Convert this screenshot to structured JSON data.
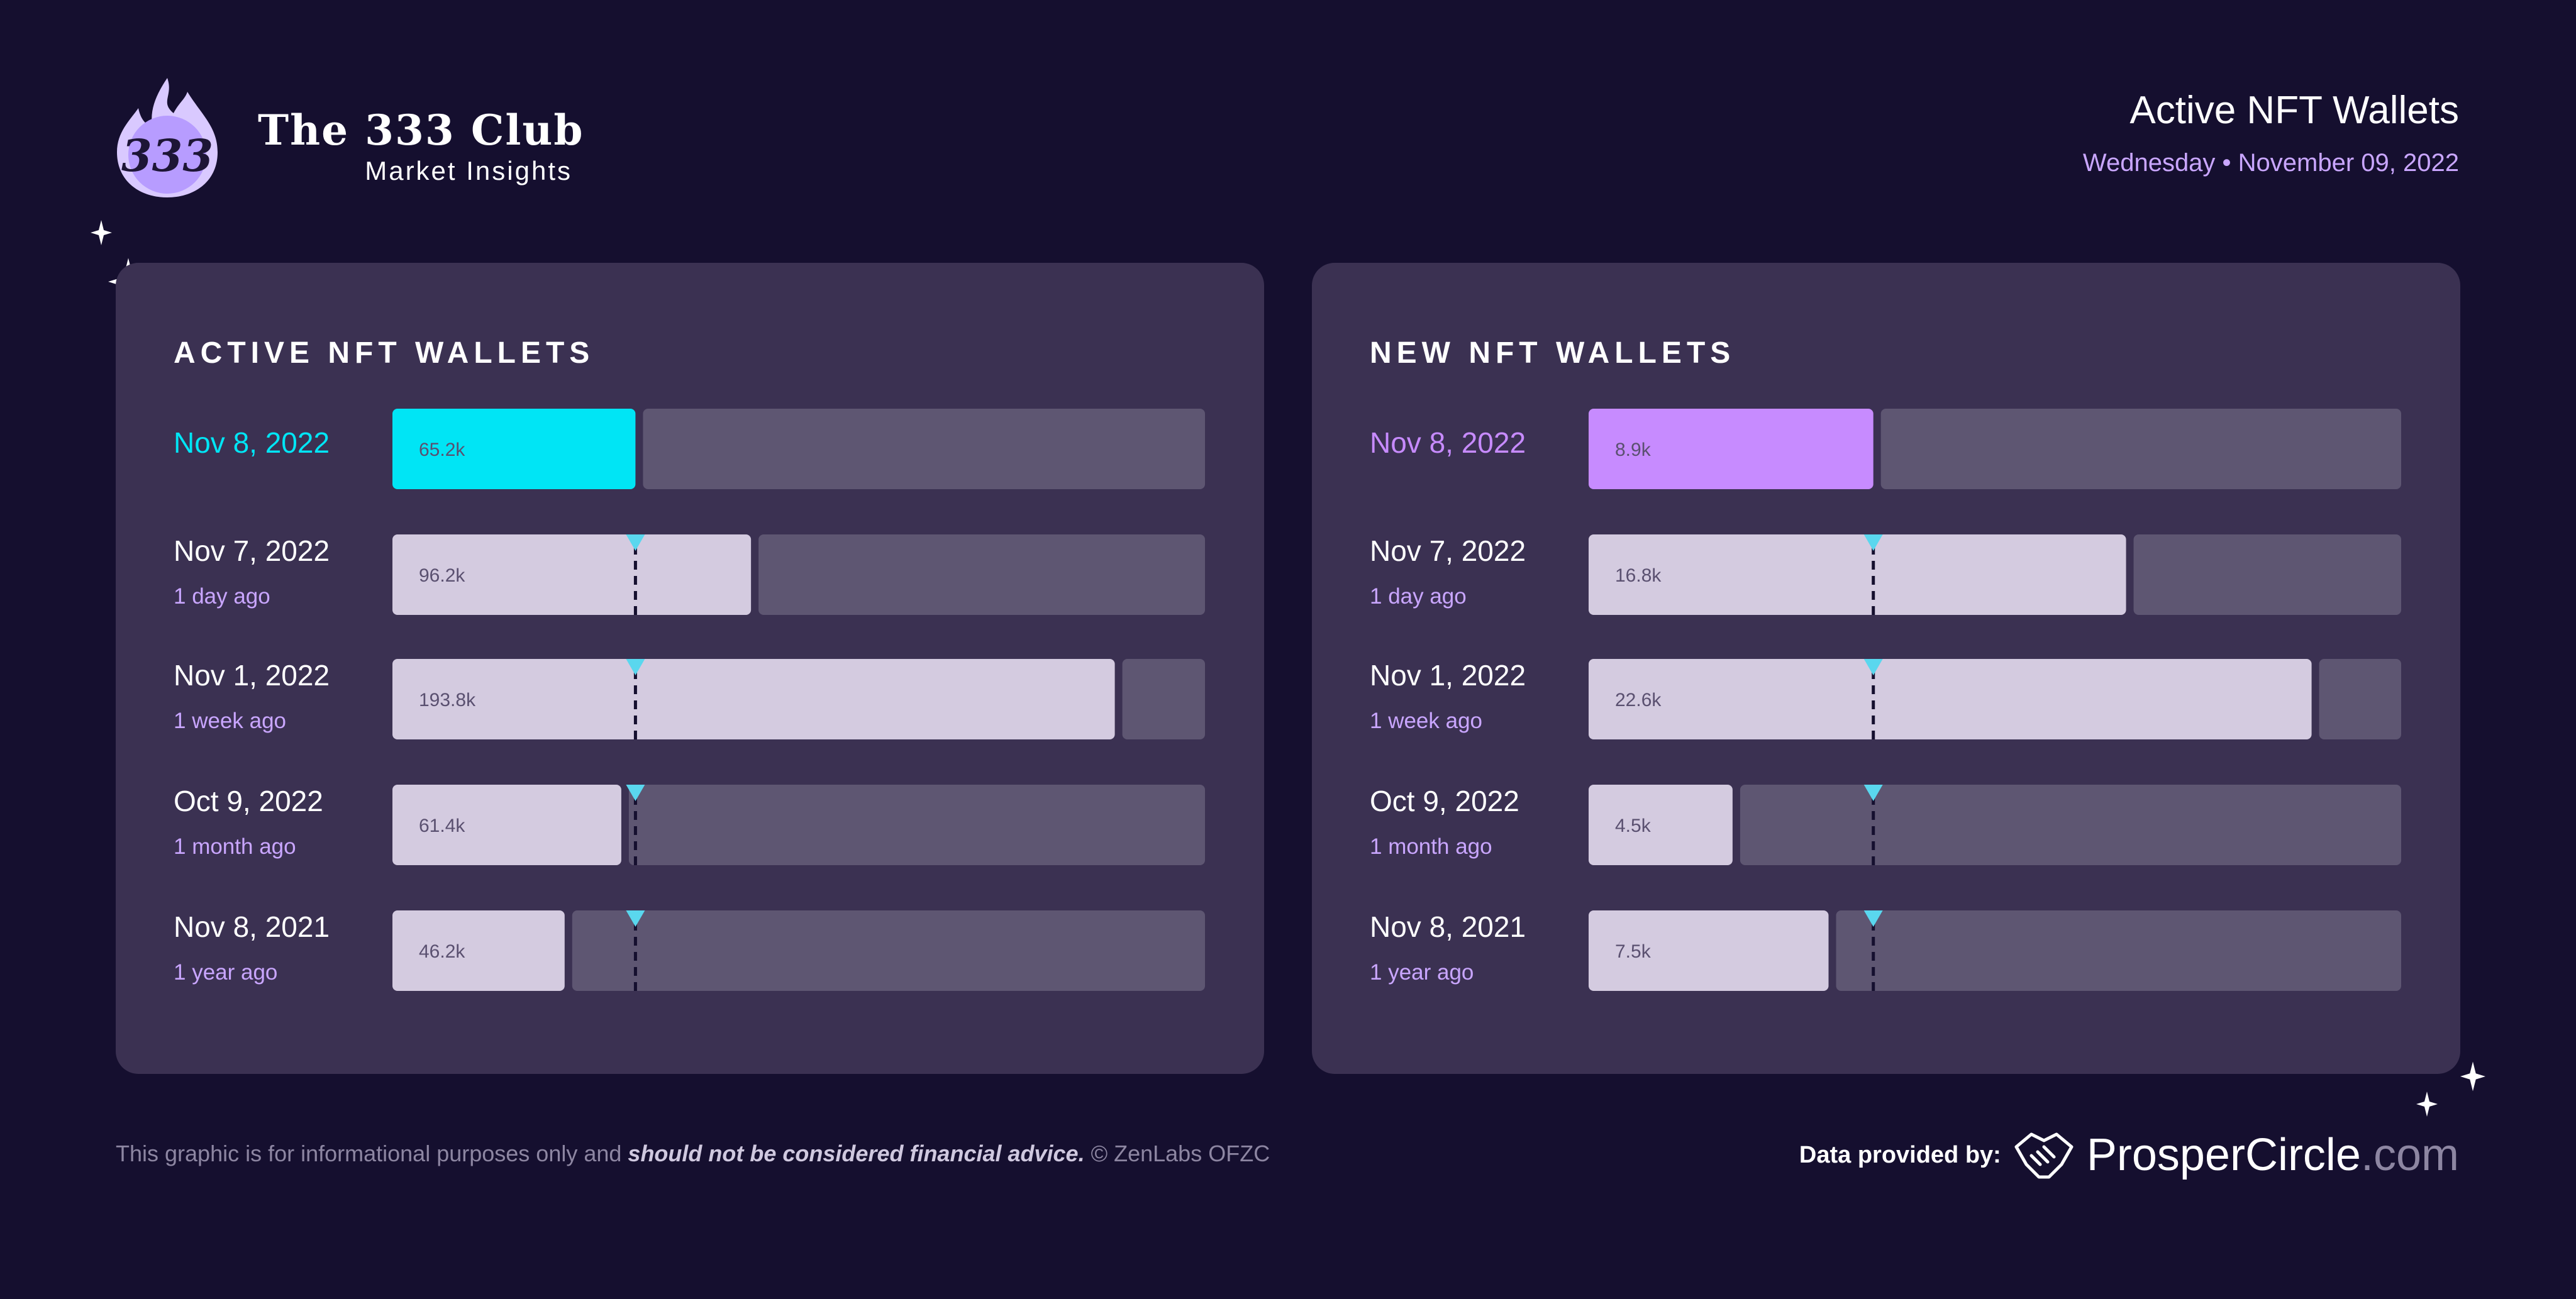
{
  "brand": {
    "logo_text": "333",
    "title": "The 333 Club",
    "subtitle": "Market Insights",
    "logo_icon": "flame-icon"
  },
  "header": {
    "title": "Active NFT Wallets",
    "date": "Wednesday • November 09, 2022"
  },
  "colors": {
    "background": "#150f2f",
    "panel": "#3b3152",
    "track": "#5e5672",
    "bar": "#d4cbe0",
    "active_highlight": "#00e5f5",
    "new_highlight": "#c78bff",
    "marker": "#5ad7ee"
  },
  "chart_data": [
    {
      "type": "bar",
      "orientation": "horizontal",
      "title": "ACTIVE NFT WALLETS",
      "categories": [
        "Nov 8, 2022",
        "Nov 7, 2022",
        "Nov 1, 2022",
        "Oct 9, 2022",
        "Nov 8, 2021"
      ],
      "sublabels": [
        "",
        "1 day ago",
        "1 week ago",
        "1 month ago",
        "1 year ago"
      ],
      "values": [
        65200,
        96200,
        193800,
        61400,
        46200
      ],
      "value_labels": [
        "65.2k",
        "96.2k",
        "193.8k",
        "61.4k",
        "46.2k"
      ],
      "xlim": [
        0,
        218000
      ],
      "reference_value": 65200,
      "highlight_color": "#00e5f5"
    },
    {
      "type": "bar",
      "orientation": "horizontal",
      "title": "NEW NFT WALLETS",
      "categories": [
        "Nov 8, 2022",
        "Nov 7, 2022",
        "Nov 1, 2022",
        "Oct 9, 2022",
        "Nov 8, 2021"
      ],
      "sublabels": [
        "",
        "1 day ago",
        "1 week ago",
        "1 month ago",
        "1 year ago"
      ],
      "values": [
        8900,
        16800,
        22600,
        4500,
        7500
      ],
      "value_labels": [
        "8.9k",
        "16.8k",
        "22.6k",
        "4.5k",
        "7.5k"
      ],
      "xlim": [
        0,
        25400
      ],
      "reference_value": 8900,
      "highlight_color": "#c78bff"
    }
  ],
  "footer": {
    "disclaimer_start": "This graphic is for informational purposes only and ",
    "disclaimer_emphasis": "should not be considered financial advice.",
    "disclaimer_end": " © ZenLabs OFZC",
    "provider_label": "Data provided by:",
    "provider_name": "ProsperCircle",
    "provider_tld": ".com",
    "provider_icon": "handshake-icon"
  }
}
